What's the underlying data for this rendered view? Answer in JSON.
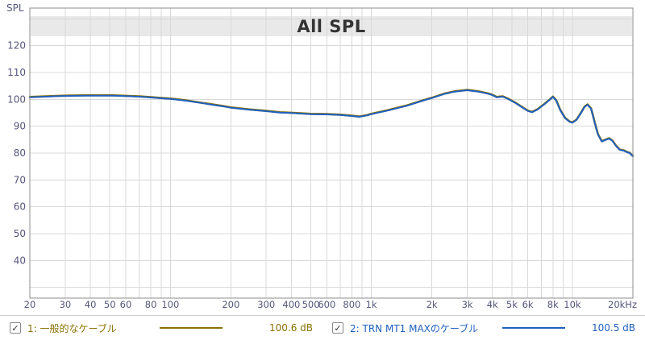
{
  "window": {
    "y_axis_unit": "SPL"
  },
  "chart_data": {
    "type": "line",
    "title": "All SPL",
    "ylabel": "SPL",
    "xlabel": "",
    "x_scale": "log",
    "xlim": [
      20,
      20000
    ],
    "ylim": [
      26,
      134
    ],
    "y_grid": {
      "min": 30,
      "max": 130,
      "step": 10
    },
    "x_ticks": [
      {
        "f": 20,
        "label": "20"
      },
      {
        "f": 30,
        "label": "30"
      },
      {
        "f": 40,
        "label": "40"
      },
      {
        "f": 50,
        "label": "50"
      },
      {
        "f": 60,
        "label": "60"
      },
      {
        "f": 80,
        "label": "80"
      },
      {
        "f": 100,
        "label": "100"
      },
      {
        "f": 200,
        "label": "200"
      },
      {
        "f": 300,
        "label": "300"
      },
      {
        "f": 400,
        "label": "400"
      },
      {
        "f": 500,
        "label": "500"
      },
      {
        "f": 600,
        "label": "600"
      },
      {
        "f": 800,
        "label": "800"
      },
      {
        "f": 1000,
        "label": "1k"
      },
      {
        "f": 2000,
        "label": "2k"
      },
      {
        "f": 3000,
        "label": "3k"
      },
      {
        "f": 4000,
        "label": "4k"
      },
      {
        "f": 5000,
        "label": "5k"
      },
      {
        "f": 6000,
        "label": "6k"
      },
      {
        "f": 8000,
        "label": "8k"
      },
      {
        "f": 10000,
        "label": "10k"
      },
      {
        "f": 20000,
        "label": "20kHz"
      }
    ],
    "y_ticks": [
      {
        "v": 120,
        "label": "120"
      },
      {
        "v": 110,
        "label": "110"
      },
      {
        "v": 100,
        "label": "100"
      },
      {
        "v": 90,
        "label": "90"
      },
      {
        "v": 80,
        "label": "80"
      },
      {
        "v": 70,
        "label": "70"
      },
      {
        "v": 60,
        "label": "60"
      },
      {
        "v": 50,
        "label": "50"
      },
      {
        "v": 40,
        "label": "40"
      }
    ],
    "colors": {
      "grid": "#d9d9d9",
      "border": "#8c8c8c",
      "axis_text": "#55557d",
      "title_band": "#e9e9e9",
      "plot_bg": "#ffffff"
    },
    "points": [
      [
        20,
        100.8
      ],
      [
        24,
        101.0
      ],
      [
        28,
        101.2
      ],
      [
        32,
        101.3
      ],
      [
        38,
        101.4
      ],
      [
        45,
        101.4
      ],
      [
        52,
        101.4
      ],
      [
        60,
        101.2
      ],
      [
        70,
        101.0
      ],
      [
        80,
        100.7
      ],
      [
        90,
        100.4
      ],
      [
        100,
        100.2
      ],
      [
        120,
        99.5
      ],
      [
        150,
        98.4
      ],
      [
        180,
        97.5
      ],
      [
        200,
        96.9
      ],
      [
        250,
        96.1
      ],
      [
        300,
        95.6
      ],
      [
        350,
        95.1
      ],
      [
        400,
        94.9
      ],
      [
        500,
        94.5
      ],
      [
        600,
        94.4
      ],
      [
        700,
        94.2
      ],
      [
        800,
        93.8
      ],
      [
        870,
        93.5
      ],
      [
        950,
        94.0
      ],
      [
        1000,
        94.5
      ],
      [
        1200,
        95.8
      ],
      [
        1500,
        97.6
      ],
      [
        1800,
        99.5
      ],
      [
        2000,
        100.5
      ],
      [
        2300,
        102.0
      ],
      [
        2600,
        102.9
      ],
      [
        3000,
        103.4
      ],
      [
        3400,
        102.9
      ],
      [
        3800,
        102.1
      ],
      [
        4000,
        101.6
      ],
      [
        4200,
        100.8
      ],
      [
        4500,
        101.0
      ],
      [
        4800,
        100.1
      ],
      [
        5200,
        98.7
      ],
      [
        5600,
        97.1
      ],
      [
        6000,
        95.7
      ],
      [
        6300,
        95.2
      ],
      [
        6700,
        96.2
      ],
      [
        7200,
        98.0
      ],
      [
        7700,
        99.8
      ],
      [
        8000,
        100.9
      ],
      [
        8300,
        99.6
      ],
      [
        8700,
        96.0
      ],
      [
        9200,
        93.0
      ],
      [
        9700,
        91.6
      ],
      [
        10000,
        91.3
      ],
      [
        10500,
        92.4
      ],
      [
        11000,
        94.8
      ],
      [
        11500,
        97.2
      ],
      [
        11900,
        98.0
      ],
      [
        12400,
        96.5
      ],
      [
        12900,
        91.5
      ],
      [
        13400,
        87.0
      ],
      [
        14000,
        84.3
      ],
      [
        14600,
        84.9
      ],
      [
        15200,
        85.4
      ],
      [
        15800,
        84.6
      ],
      [
        16500,
        82.6
      ],
      [
        17200,
        81.2
      ],
      [
        18000,
        80.9
      ],
      [
        18700,
        80.3
      ],
      [
        19300,
        80.0
      ],
      [
        20000,
        78.8
      ]
    ],
    "series": [
      {
        "name": "1: 一般的なケーブル",
        "color": "#8a7100",
        "offset_db": 0.12,
        "value_label": "100.6 dB"
      },
      {
        "name": "2: TRN MT1 MAXのケーブル",
        "color": "#2060c0",
        "offset_db": 0,
        "value_label": "100.5 dB"
      }
    ]
  },
  "legend": {
    "check_glyph": "✓",
    "items": [
      {
        "checked": true,
        "label": "1: 一般的なケーブル",
        "value": "100.6 dB",
        "color": "#8a7100"
      },
      {
        "checked": true,
        "label": "2: TRN MT1 MAXのケーブル",
        "value": "100.5 dB",
        "color": "#2060c0"
      }
    ]
  }
}
